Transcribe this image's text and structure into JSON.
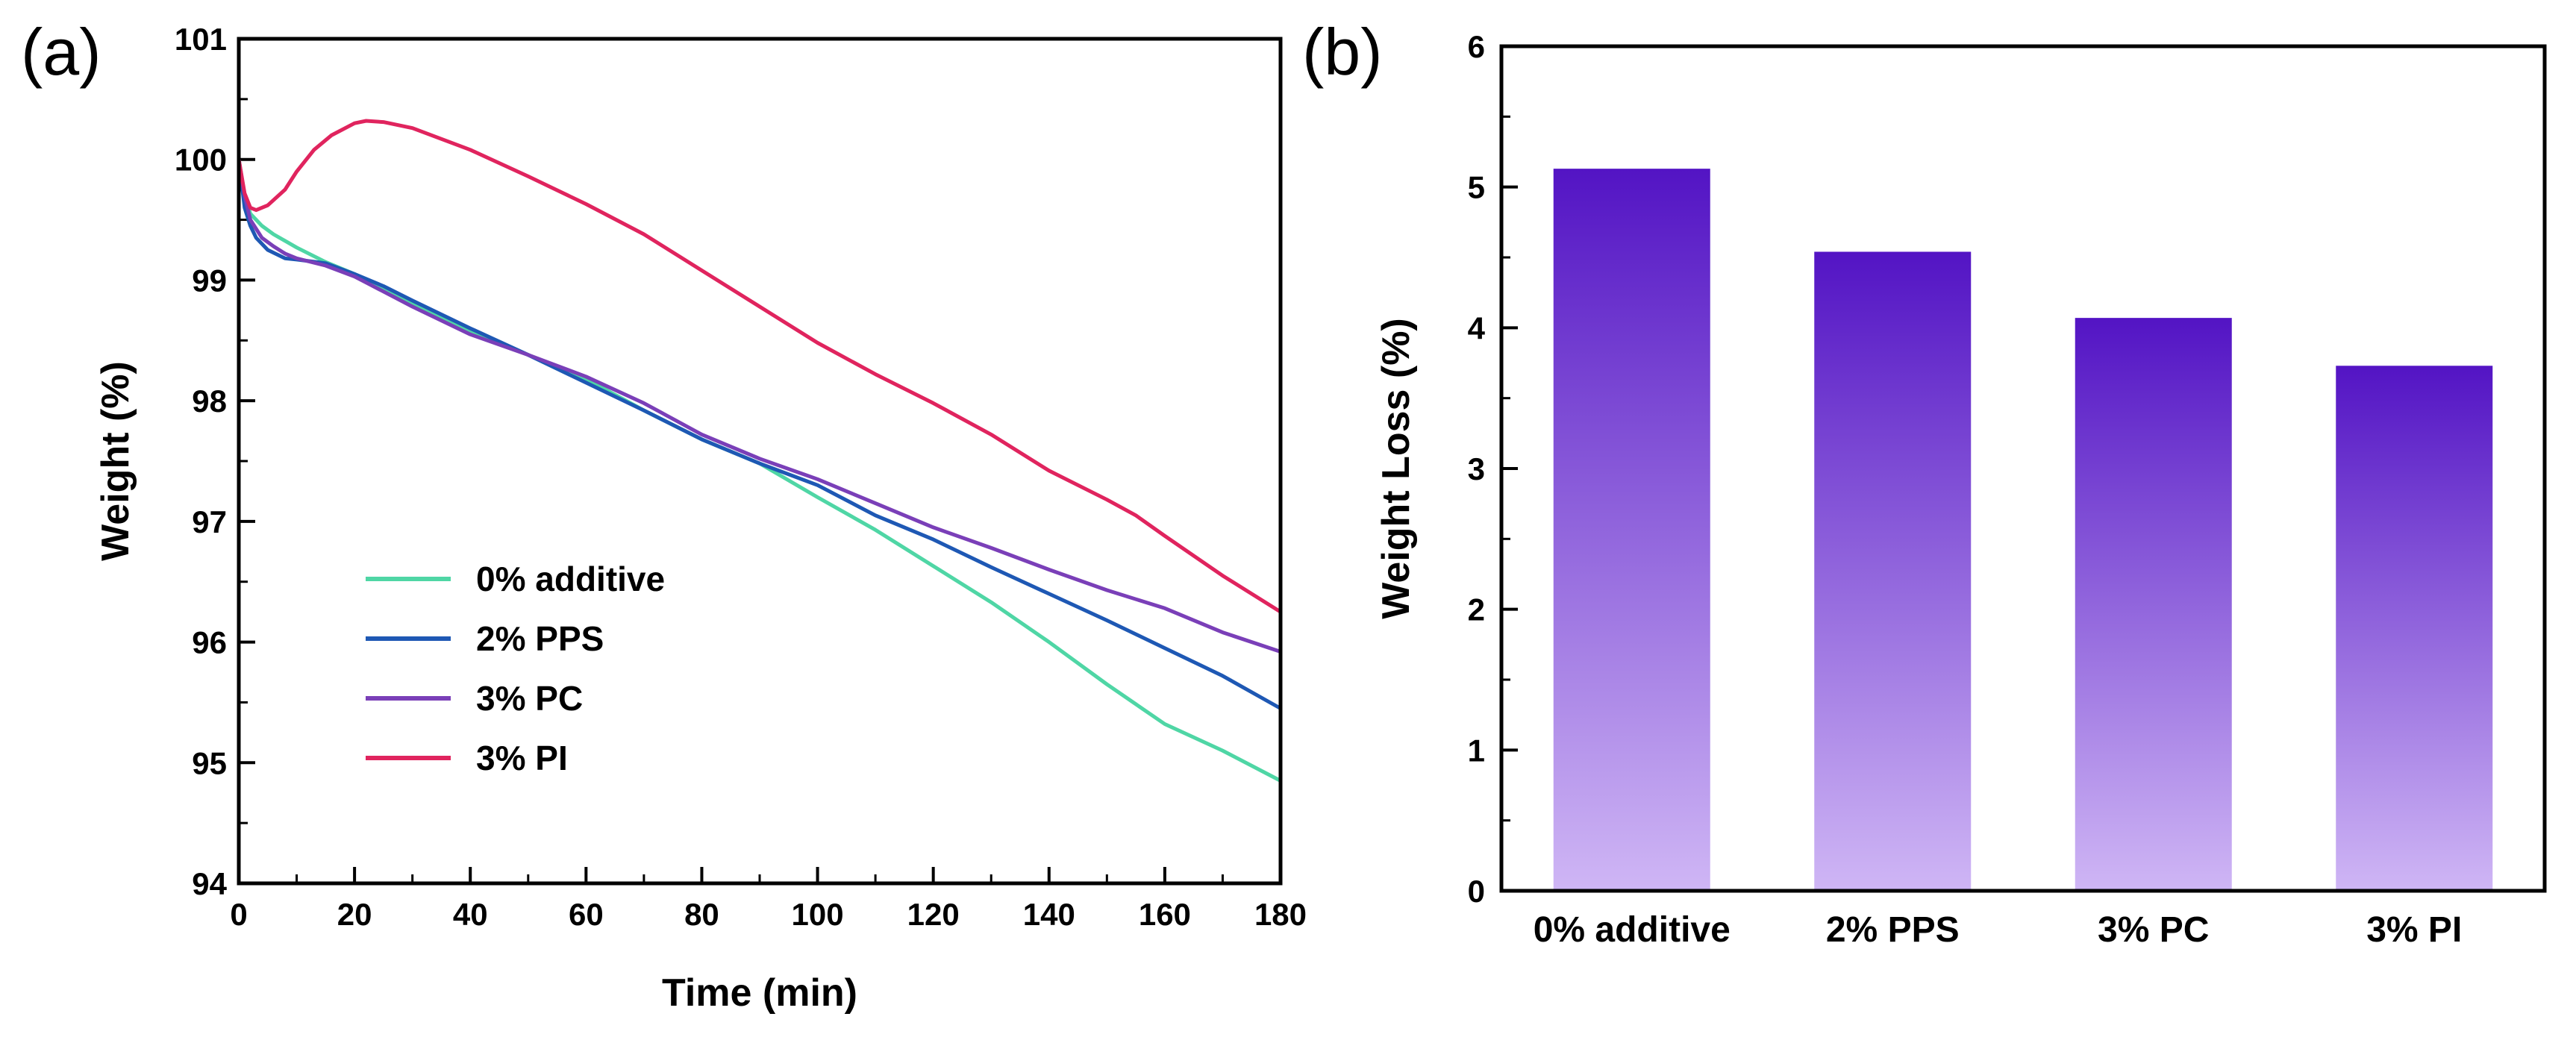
{
  "chart_data": [
    {
      "panel": "(a)",
      "type": "line",
      "xlabel": "Time (min)",
      "ylabel": "Weight (%)",
      "xlim": [
        0,
        180
      ],
      "ylim": [
        94,
        101
      ],
      "xticks": [
        0,
        20,
        40,
        60,
        80,
        100,
        120,
        140,
        160,
        180
      ],
      "yticks": [
        94,
        95,
        96,
        97,
        98,
        99,
        100,
        101
      ],
      "legend_position": "lower-left",
      "series": [
        {
          "name": "0% additive",
          "color": "#4fd6a5",
          "x": [
            0,
            1,
            2,
            4,
            6,
            10,
            15,
            20,
            25,
            30,
            40,
            50,
            60,
            70,
            80,
            90,
            100,
            110,
            120,
            130,
            140,
            150,
            160,
            170,
            180
          ],
          "y": [
            100.0,
            99.7,
            99.55,
            99.45,
            99.38,
            99.27,
            99.15,
            99.05,
            98.93,
            98.8,
            98.58,
            98.38,
            98.18,
            97.92,
            97.68,
            97.48,
            97.2,
            96.93,
            96.63,
            96.33,
            96.0,
            95.65,
            95.32,
            95.1,
            94.85
          ]
        },
        {
          "name": "2% PPS",
          "color": "#1e58b4",
          "x": [
            0,
            1,
            2,
            3,
            5,
            8,
            10,
            15,
            20,
            25,
            30,
            40,
            50,
            60,
            70,
            80,
            90,
            100,
            110,
            120,
            130,
            140,
            150,
            160,
            170,
            180
          ],
          "y": [
            100.0,
            99.6,
            99.45,
            99.35,
            99.25,
            99.18,
            99.17,
            99.14,
            99.05,
            98.95,
            98.83,
            98.6,
            98.38,
            98.15,
            97.92,
            97.68,
            97.48,
            97.3,
            97.05,
            96.85,
            96.62,
            96.4,
            96.18,
            95.95,
            95.72,
            95.45
          ]
        },
        {
          "name": "3% PC",
          "color": "#7a3fb8",
          "x": [
            0,
            1,
            2,
            4,
            6,
            8,
            10,
            15,
            20,
            30,
            40,
            50,
            60,
            70,
            80,
            90,
            100,
            110,
            120,
            130,
            140,
            150,
            160,
            170,
            180
          ],
          "y": [
            100.0,
            99.7,
            99.5,
            99.35,
            99.28,
            99.22,
            99.18,
            99.12,
            99.03,
            98.78,
            98.55,
            98.38,
            98.2,
            97.98,
            97.72,
            97.52,
            97.35,
            97.15,
            96.95,
            96.78,
            96.6,
            96.43,
            96.28,
            96.08,
            95.92
          ]
        },
        {
          "name": "3% PI",
          "color": "#e0245e",
          "x": [
            0,
            1,
            2,
            3,
            5,
            8,
            10,
            13,
            16,
            20,
            22,
            25,
            30,
            40,
            50,
            60,
            70,
            80,
            90,
            100,
            110,
            120,
            130,
            140,
            150,
            155,
            160,
            170,
            180
          ],
          "y": [
            100.0,
            99.72,
            99.6,
            99.58,
            99.62,
            99.75,
            99.9,
            100.08,
            100.2,
            100.3,
            100.32,
            100.31,
            100.26,
            100.08,
            99.86,
            99.63,
            99.38,
            99.08,
            98.78,
            98.48,
            98.22,
            97.98,
            97.72,
            97.42,
            97.18,
            97.05,
            96.88,
            96.55,
            96.25
          ]
        }
      ]
    },
    {
      "panel": "(b)",
      "type": "bar",
      "categories": [
        "0% additive",
        "2% PPS",
        "3% PC",
        "3% PI"
      ],
      "values": [
        5.13,
        4.54,
        4.07,
        3.73
      ],
      "ylabel": "Weight Loss (%)",
      "xlabel": "",
      "ylim": [
        0,
        6
      ],
      "yticks": [
        0,
        1,
        2,
        3,
        4,
        5,
        6
      ],
      "bar_gradient": {
        "top": "#5314c4",
        "bottom": "#cfb6f5"
      }
    }
  ]
}
